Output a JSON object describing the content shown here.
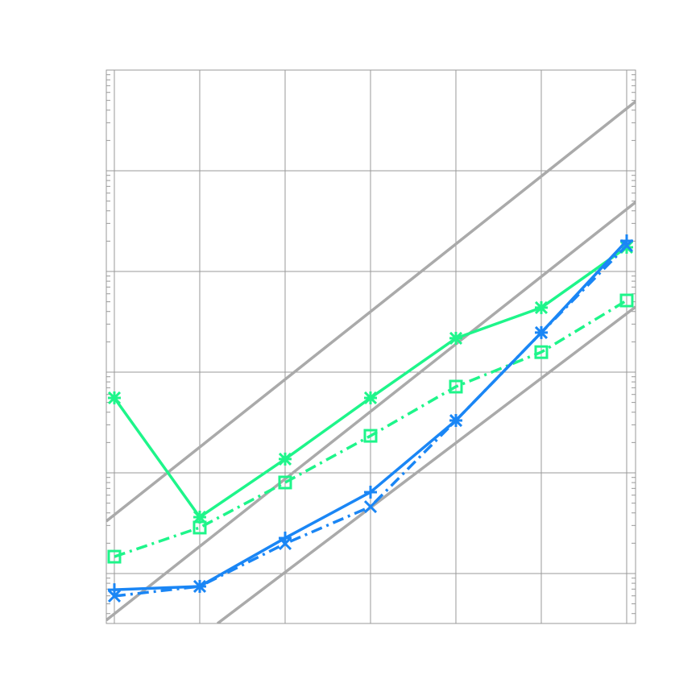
{
  "chart_data": {
    "type": "line",
    "title": "",
    "xlabel": "",
    "ylabel": "",
    "x": [
      1,
      2,
      3,
      4,
      5,
      6,
      7
    ],
    "xlim": [
      0.906,
      7.104
    ],
    "ylim": [
      0.319,
      100000
    ],
    "yscale": "log",
    "grid": true,
    "legend": "none",
    "series": [
      {
        "color": "#1ef58a",
        "style": "solid",
        "marker": "star",
        "values": [
          55.5,
          3.63,
          13.7,
          55.5,
          217,
          437,
          1738
        ]
      },
      {
        "color": "#1ef58a",
        "style": "dashdot",
        "marker": "square",
        "values": [
          1.47,
          2.86,
          8.02,
          23.3,
          71.8,
          158,
          515
        ]
      },
      {
        "color": "#1a86f5",
        "style": "solid",
        "marker": "plus",
        "values": [
          0.69,
          0.745,
          2.25,
          6.43,
          33.1,
          247,
          2014
        ]
      },
      {
        "color": "#1a86f5",
        "style": "dashdot",
        "marker": "x",
        "values": [
          0.597,
          0.745,
          1.98,
          4.61,
          33.1,
          247,
          1803
        ]
      }
    ],
    "reference_lines": [
      {
        "color": "#aaaaaa",
        "points": [
          [
            0.906,
            3.31
          ],
          [
            7.104,
            48750
          ]
        ]
      },
      {
        "color": "#aaaaaa",
        "points": [
          [
            0.906,
            0.344
          ],
          [
            7.104,
            4875
          ]
        ]
      },
      {
        "color": "#aaaaaa",
        "points": [
          [
            2.208,
            0.319
          ],
          [
            7.104,
            445
          ]
        ]
      }
    ]
  }
}
